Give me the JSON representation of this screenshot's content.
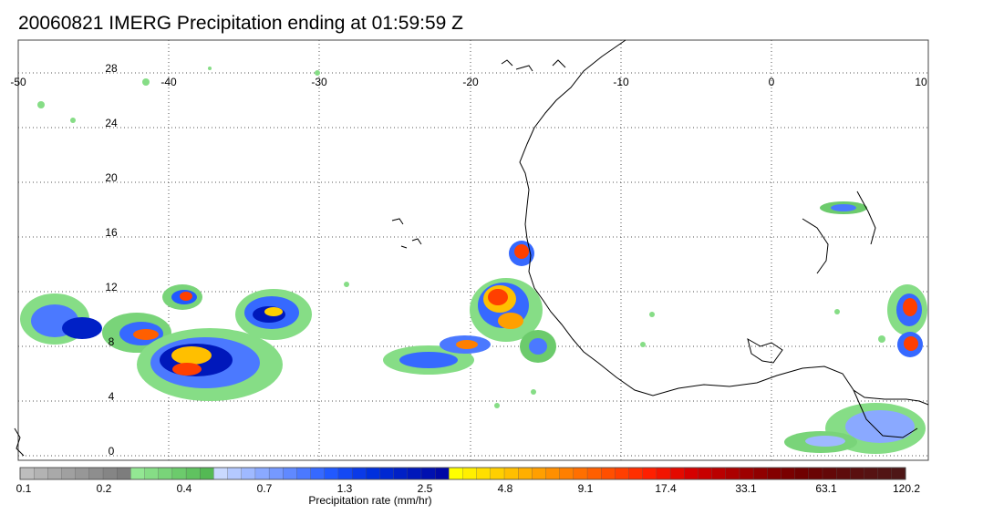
{
  "title": "20060821 IMERG Precipitation ending at 01:59:59 Z",
  "lon_labels": [
    "-50",
    "-40",
    "-30",
    "-20",
    "-10",
    "0",
    "10"
  ],
  "lat_labels": [
    "28",
    "24",
    "20",
    "16",
    "12",
    "8",
    "4",
    "0"
  ],
  "map": {
    "lon_range": [
      -50,
      10
    ],
    "lat_range": [
      -0.5,
      29.5
    ],
    "grid": "dotted",
    "lon_grid_step": 10,
    "lat_grid_step": 4
  },
  "colorbar": {
    "title": "Precipitation rate (mm/hr)",
    "labels": [
      "0.1",
      "0.2",
      "0.4",
      "0.7",
      "1.3",
      "2.5",
      "4.8",
      "9.1",
      "17.4",
      "33.1",
      "63.1",
      "120.2"
    ],
    "colors": [
      "#bdbdbd",
      "#b3b3b3",
      "#a9a9a9",
      "#a0a0a0",
      "#979797",
      "#8e8e8e",
      "#858585",
      "#7d7d7d",
      "#93e793",
      "#86dd86",
      "#79d479",
      "#6ccb6c",
      "#60c260",
      "#54b954",
      "#c9d9ff",
      "#b4c9ff",
      "#9fb9ff",
      "#8aa9ff",
      "#7599ff",
      "#6089ff",
      "#4b79ff",
      "#3669ff",
      "#2159ff",
      "#1449f4",
      "#0a3ae8",
      "#0030dd",
      "#0028d2",
      "#0020c6",
      "#0018bb",
      "#0010b0",
      "#0008a5",
      "#ffff00",
      "#ffef00",
      "#ffdf00",
      "#ffcf00",
      "#ffbf00",
      "#ffaf00",
      "#ff9f00",
      "#ff8f00",
      "#ff7f00",
      "#ff6f00",
      "#ff5f00",
      "#ff4f00",
      "#ff3f00",
      "#ff2f00",
      "#ff1f00",
      "#f21400",
      "#e40a00",
      "#d60000",
      "#c80000",
      "#ba0000",
      "#ac0000",
      "#9e0000",
      "#900000",
      "#840000",
      "#7a0000",
      "#700000",
      "#6a0404",
      "#640808",
      "#5e0c0c",
      "#5a0f0f",
      "#561212",
      "#521414",
      "#4e1616"
    ]
  }
}
